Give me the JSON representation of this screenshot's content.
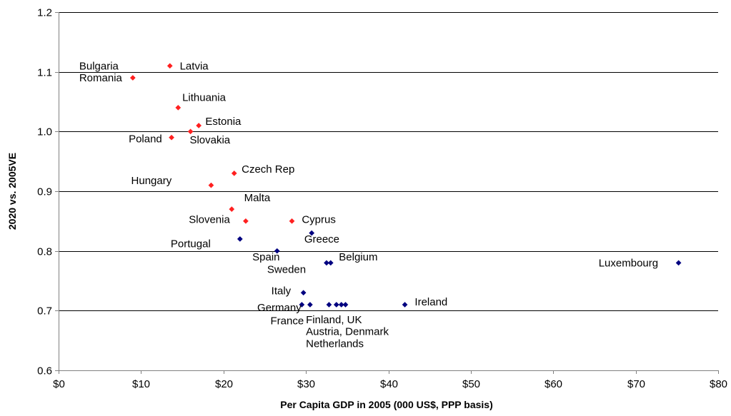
{
  "chart_data": {
    "type": "scatter",
    "title": "",
    "xlabel": "Per Capita GDP in 2005 (000 US$, PPP basis)",
    "ylabel": "2020 vs. 2005VE",
    "xlim": [
      0,
      80
    ],
    "ylim": [
      0.6,
      1.2
    ],
    "x_ticks": [
      0,
      10,
      20,
      30,
      40,
      50,
      60,
      70,
      80
    ],
    "x_tick_labels": [
      "$0",
      "$10",
      "$20",
      "$30",
      "$40",
      "$50",
      "$60",
      "$70",
      "$80"
    ],
    "y_ticks": [
      0.6,
      0.7,
      0.8,
      0.9,
      1.0,
      1.1,
      1.2
    ],
    "y_tick_labels": [
      "0.6",
      "0.7",
      "0.8",
      "0.9",
      "1.0",
      "1.1",
      "1.2"
    ],
    "grid": "horizontal",
    "legend": "none",
    "colors": {
      "red_group": "#ff2020",
      "blue_group": "#000080",
      "gridline": "#000000",
      "axis": "#808080"
    },
    "series": [
      {
        "color_key": "red_group",
        "points": [
          {
            "x": 13.5,
            "y": 1.11
          },
          {
            "x": 9.0,
            "y": 1.09
          },
          {
            "x": 14.5,
            "y": 1.04
          },
          {
            "x": 17.0,
            "y": 1.01
          },
          {
            "x": 16.0,
            "y": 1.0
          },
          {
            "x": 13.7,
            "y": 0.99
          },
          {
            "x": 21.3,
            "y": 0.93
          },
          {
            "x": 18.5,
            "y": 0.91
          },
          {
            "x": 21.0,
            "y": 0.87
          },
          {
            "x": 22.7,
            "y": 0.85
          },
          {
            "x": 28.3,
            "y": 0.85
          }
        ]
      },
      {
        "color_key": "blue_group",
        "points": [
          {
            "x": 30.7,
            "y": 0.83
          },
          {
            "x": 22.0,
            "y": 0.82
          },
          {
            "x": 26.5,
            "y": 0.8
          },
          {
            "x": 32.5,
            "y": 0.78
          },
          {
            "x": 33.0,
            "y": 0.78
          },
          {
            "x": 75.2,
            "y": 0.78
          },
          {
            "x": 29.7,
            "y": 0.73
          },
          {
            "x": 29.5,
            "y": 0.71
          },
          {
            "x": 30.5,
            "y": 0.71
          },
          {
            "x": 32.8,
            "y": 0.71
          },
          {
            "x": 33.7,
            "y": 0.71
          },
          {
            "x": 34.3,
            "y": 0.71
          },
          {
            "x": 34.8,
            "y": 0.71
          },
          {
            "x": 42.0,
            "y": 0.71
          }
        ]
      }
    ],
    "annotations": [
      {
        "text": "Bulgaria",
        "x": 2.5,
        "y": 1.11
      },
      {
        "text": "Latvia",
        "x": 14.7,
        "y": 1.11
      },
      {
        "text": "Romania",
        "x": 2.5,
        "y": 1.09
      },
      {
        "text": "Lithuania",
        "x": 15.0,
        "y": 1.057
      },
      {
        "text": "Estonia",
        "x": 17.8,
        "y": 1.017
      },
      {
        "text": "Poland",
        "x": 8.5,
        "y": 0.988
      },
      {
        "text": "Slovakia",
        "x": 15.9,
        "y": 0.986
      },
      {
        "text": "Czech Rep",
        "x": 22.2,
        "y": 0.937
      },
      {
        "text": "Hungary",
        "x": 8.8,
        "y": 0.918
      },
      {
        "text": "Malta",
        "x": 22.5,
        "y": 0.889
      },
      {
        "text": "Slovenia",
        "x": 15.8,
        "y": 0.853
      },
      {
        "text": "Cyprus",
        "x": 29.5,
        "y": 0.853
      },
      {
        "text": "Greece",
        "x": 29.8,
        "y": 0.82
      },
      {
        "text": "Portugal",
        "x": 13.6,
        "y": 0.812
      },
      {
        "text": "Spain",
        "x": 23.5,
        "y": 0.79
      },
      {
        "text": "Belgium",
        "x": 34.0,
        "y": 0.79
      },
      {
        "text": "Sweden",
        "x": 25.3,
        "y": 0.769
      },
      {
        "text": "Luxembourg",
        "x": 65.5,
        "y": 0.78
      },
      {
        "text": "Italy",
        "x": 25.8,
        "y": 0.733
      },
      {
        "text": "Ireland",
        "x": 43.2,
        "y": 0.715
      },
      {
        "text": "Germany",
        "x": 24.1,
        "y": 0.705
      },
      {
        "text": "France",
        "x": 25.7,
        "y": 0.683
      },
      {
        "text": "Finland, UK",
        "x": 30.0,
        "y": 0.685
      },
      {
        "text": "Austria, Denmark",
        "x": 30.0,
        "y": 0.665
      },
      {
        "text": "Netherlands",
        "x": 30.0,
        "y": 0.645
      }
    ]
  }
}
